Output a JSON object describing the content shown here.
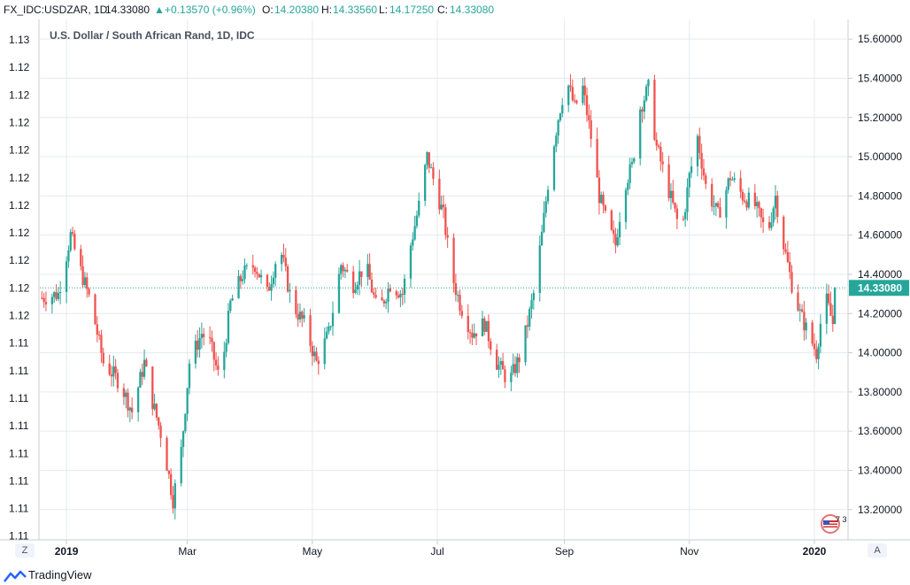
{
  "header": {
    "symbol": "FX_IDC:USDZAR, 1D",
    "last": "14.33080",
    "change": "+0.13570 (+0.96%)",
    "open_label": "O:",
    "open": "14.20380",
    "high_label": "H:",
    "high": "14.33560",
    "low_label": "L:",
    "low": "14.17250",
    "close_label": "C:",
    "close": "14.33080"
  },
  "chart_title": "U.S. Dollar / South African Rand, 1D, IDC",
  "left_axis_labels": [
    "1.13",
    "1.12",
    "1.12",
    "1.12",
    "1.12",
    "1.12",
    "1.12",
    "1.12",
    "1.12",
    "1.12",
    "1.12",
    "1.11",
    "1.11",
    "1.11",
    "1.11",
    "1.11",
    "1.11",
    "1.11",
    "1.11"
  ],
  "buttons": {
    "left": "Z",
    "right": "A"
  },
  "footer": {
    "brand": "TradingView"
  },
  "colors": {
    "up": "#26a69a",
    "down": "#ef5350",
    "grid": "#e6e9ee",
    "priceline": "#26a69a"
  },
  "chart_data": {
    "type": "candlestick",
    "title": "U.S. Dollar / South African Rand, 1D, IDC",
    "ylim": [
      13.05,
      15.7
    ],
    "y_ticks": [
      15.6,
      15.4,
      15.2,
      15.0,
      14.8,
      14.6,
      14.4,
      14.2,
      14.0,
      13.8,
      13.6,
      13.4,
      13.2
    ],
    "y_tick_labels": [
      "15.60000",
      "15.40000",
      "15.20000",
      "15.00000",
      "14.80000",
      "14.60000",
      "14.40000",
      "14.20000",
      "14.00000",
      "13.80000",
      "13.60000",
      "13.40000",
      "13.20000"
    ],
    "x_labels": [
      {
        "label": "2019",
        "day": 0
      },
      {
        "label": "Mar",
        "day": 59
      },
      {
        "label": "May",
        "day": 120
      },
      {
        "label": "Jul",
        "day": 181
      },
      {
        "label": "Sep",
        "day": 243
      },
      {
        "label": "Nov",
        "day": 304
      },
      {
        "label": "2020",
        "day": 365
      }
    ],
    "day_range": [
      -13,
      381
    ],
    "last_price": 14.3308,
    "last_price_label": "14.33080",
    "series_anchor": [
      [
        -12,
        14.28
      ],
      [
        -4,
        14.3
      ],
      [
        2,
        14.6
      ],
      [
        6,
        14.45
      ],
      [
        12,
        14.25
      ],
      [
        18,
        13.95
      ],
      [
        26,
        13.85
      ],
      [
        32,
        13.7
      ],
      [
        38,
        13.95
      ],
      [
        42,
        13.75
      ],
      [
        47,
        13.55
      ],
      [
        52,
        13.25
      ],
      [
        56,
        13.5
      ],
      [
        60,
        13.95
      ],
      [
        66,
        14.1
      ],
      [
        70,
        14.05
      ],
      [
        75,
        13.85
      ],
      [
        80,
        14.25
      ],
      [
        86,
        14.4
      ],
      [
        92,
        14.45
      ],
      [
        98,
        14.3
      ],
      [
        104,
        14.55
      ],
      [
        110,
        14.25
      ],
      [
        116,
        14.15
      ],
      [
        122,
        13.95
      ],
      [
        128,
        14.1
      ],
      [
        134,
        14.45
      ],
      [
        140,
        14.35
      ],
      [
        146,
        14.45
      ],
      [
        152,
        14.2
      ],
      [
        158,
        14.35
      ],
      [
        164,
        14.3
      ],
      [
        168,
        14.55
      ],
      [
        172,
        14.75
      ],
      [
        176,
        15.0
      ],
      [
        180,
        14.85
      ],
      [
        184,
        14.7
      ],
      [
        188,
        14.4
      ],
      [
        192,
        14.25
      ],
      [
        198,
        14.1
      ],
      [
        204,
        14.15
      ],
      [
        210,
        13.95
      ],
      [
        216,
        13.85
      ],
      [
        222,
        14.0
      ],
      [
        228,
        14.3
      ],
      [
        232,
        14.6
      ],
      [
        236,
        14.95
      ],
      [
        240,
        15.2
      ],
      [
        244,
        15.4
      ],
      [
        248,
        15.25
      ],
      [
        252,
        15.35
      ],
      [
        256,
        15.1
      ],
      [
        260,
        14.8
      ],
      [
        264,
        14.65
      ],
      [
        268,
        14.55
      ],
      [
        272,
        14.85
      ],
      [
        276,
        14.95
      ],
      [
        280,
        15.25
      ],
      [
        284,
        15.35
      ],
      [
        288,
        15.05
      ],
      [
        292,
        14.9
      ],
      [
        296,
        14.75
      ],
      [
        300,
        14.6
      ],
      [
        304,
        14.9
      ],
      [
        308,
        15.1
      ],
      [
        312,
        14.85
      ],
      [
        318,
        14.7
      ],
      [
        324,
        14.9
      ],
      [
        330,
        14.8
      ],
      [
        336,
        14.75
      ],
      [
        342,
        14.6
      ],
      [
        346,
        14.8
      ],
      [
        350,
        14.55
      ],
      [
        354,
        14.35
      ],
      [
        358,
        14.2
      ],
      [
        362,
        14.1
      ],
      [
        366,
        14.0
      ],
      [
        370,
        14.3
      ],
      [
        374,
        14.15
      ],
      [
        376,
        14.33
      ]
    ]
  }
}
